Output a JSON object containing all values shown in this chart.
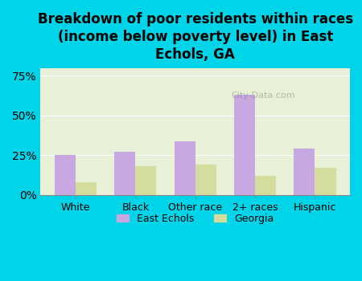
{
  "title": "Breakdown of poor residents within races\n(income below poverty level) in East\nEchols, GA",
  "categories": [
    "White",
    "Black",
    "Other race",
    "2+ races",
    "Hispanic"
  ],
  "east_echols": [
    25,
    27,
    34,
    63,
    29
  ],
  "georgia": [
    8,
    18,
    19,
    12,
    17
  ],
  "bar_color_echols": "#c8a8e0",
  "bar_color_georgia": "#d4dd9e",
  "background_outer": "#00d4e8",
  "background_plot": "#e8f0d8",
  "yticks": [
    0,
    25,
    50,
    75
  ],
  "ylim": [
    0,
    80
  ],
  "legend_echols": "East Echols",
  "legend_georgia": "Georgia",
  "title_fontsize": 12,
  "watermark": "City-Data.com"
}
